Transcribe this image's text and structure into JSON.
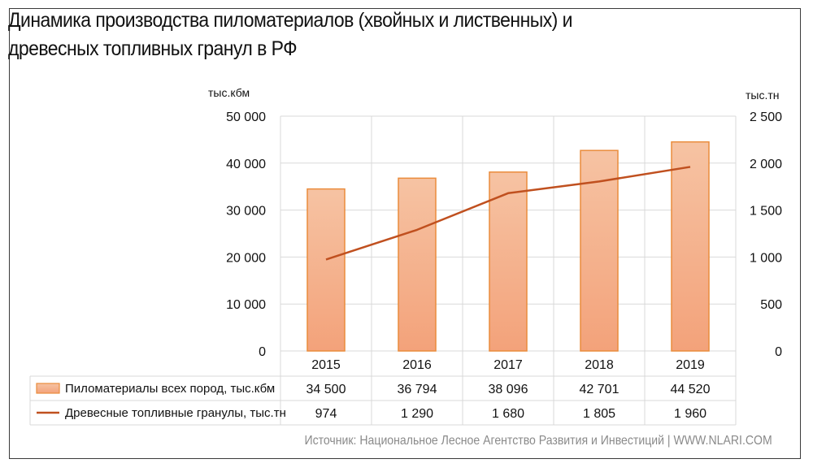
{
  "title_line1": "Динамика производства пиломатериалов (хвойных и лиственных) и",
  "title_line2": "древесных топливных гранул в РФ",
  "source": "Источник: Национальное Лесное Агентство Развития и Инвестиций | WWW.NLARI.COM",
  "colors": {
    "bar_fill_top": "#f6c3a3",
    "bar_fill_bottom": "#f3a27a",
    "bar_stroke": "#ea8c3c",
    "line": "#c0501f",
    "grid": "#d9d9d9"
  },
  "chart_data": {
    "type": "bar",
    "categories": [
      "2015",
      "2016",
      "2017",
      "2018",
      "2019"
    ],
    "y_left_unit": "тыс.кбм",
    "y_right_unit": "тыс.тн",
    "y_left_ticks": [
      "0",
      "10 000",
      "20 000",
      "30 000",
      "40 000",
      "50 000"
    ],
    "y_right_ticks": [
      "0",
      "500",
      "1 000",
      "1 500",
      "2 000",
      "2 500"
    ],
    "ylim_left": [
      0,
      50000
    ],
    "ylim_right": [
      0,
      2500
    ],
    "series": [
      {
        "name": "Пиломатериалы всех пород, тыс.кбм",
        "type": "bar",
        "axis": "left",
        "values": [
          34500,
          36794,
          38096,
          42701,
          44520
        ],
        "labels": [
          "34 500",
          "36 794",
          "38 096",
          "42 701",
          "44 520"
        ]
      },
      {
        "name": "Древесные топливные гранулы, тыс.тн",
        "type": "line",
        "axis": "right",
        "values": [
          974,
          1290,
          1680,
          1805,
          1960
        ],
        "labels": [
          "974",
          "1 290",
          "1 680",
          "1 805",
          "1 960"
        ]
      }
    ],
    "grid": true,
    "legend": "data-table"
  }
}
